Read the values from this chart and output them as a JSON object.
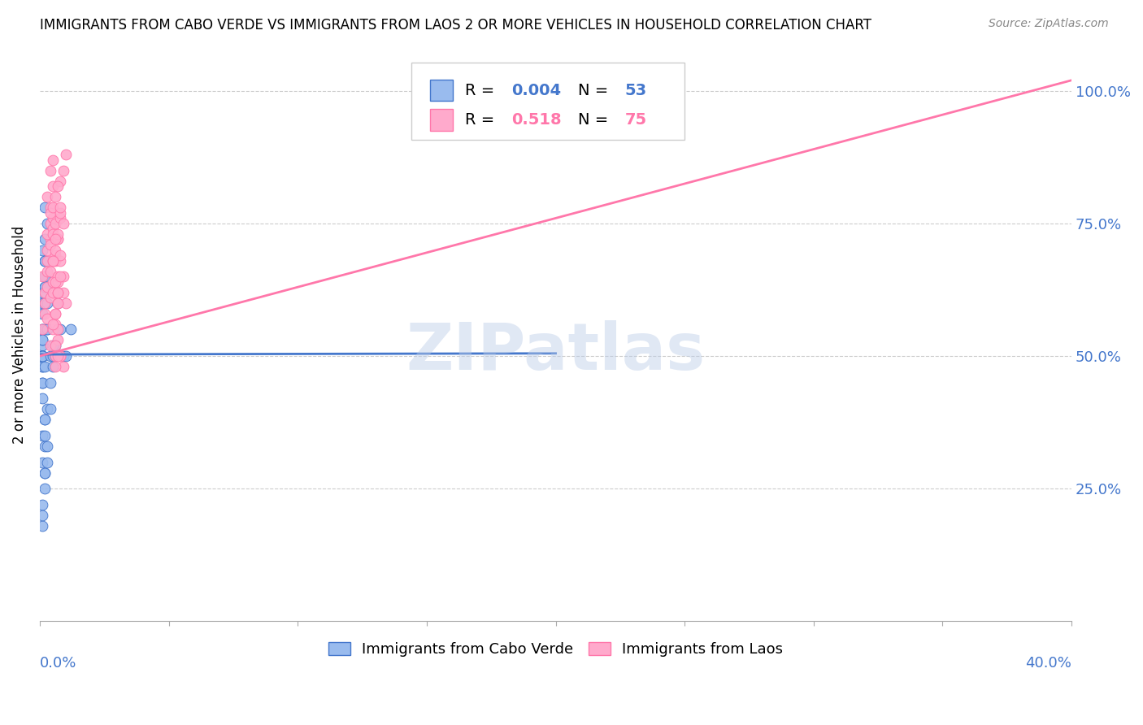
{
  "title": "IMMIGRANTS FROM CABO VERDE VS IMMIGRANTS FROM LAOS 2 OR MORE VEHICLES IN HOUSEHOLD CORRELATION CHART",
  "source": "Source: ZipAtlas.com",
  "ylabel": "2 or more Vehicles in Household",
  "ytick_labels": [
    "",
    "25.0%",
    "50.0%",
    "75.0%",
    "100.0%"
  ],
  "ytick_values": [
    0,
    0.25,
    0.5,
    0.75,
    1.0
  ],
  "xrange": [
    0,
    0.4
  ],
  "yrange": [
    0,
    1.08
  ],
  "legend1_label": "Immigrants from Cabo Verde",
  "legend2_label": "Immigrants from Laos",
  "r1": "0.004",
  "n1": "53",
  "r2": "0.518",
  "n2": "75",
  "color_blue": "#99BBEE",
  "color_blue_line": "#4477CC",
  "color_pink": "#FFAACC",
  "color_pink_line": "#FF77AA",
  "color_right_axis": "#4477CC",
  "watermark": "ZIPatlas",
  "cabo_verde_x": [
    0.001,
    0.001,
    0.002,
    0.001,
    0.001,
    0.002,
    0.001,
    0.002,
    0.001,
    0.001,
    0.002,
    0.001,
    0.001,
    0.002,
    0.001,
    0.003,
    0.002,
    0.001,
    0.001,
    0.002,
    0.001,
    0.001,
    0.002,
    0.002,
    0.001,
    0.001,
    0.003,
    0.002,
    0.001,
    0.001,
    0.003,
    0.002,
    0.001,
    0.001,
    0.002,
    0.001,
    0.003,
    0.002,
    0.001,
    0.002,
    0.004,
    0.003,
    0.005,
    0.006,
    0.004,
    0.005,
    0.007,
    0.006,
    0.008,
    0.005,
    0.009,
    0.01,
    0.012
  ],
  "cabo_verde_y": [
    0.5,
    0.52,
    0.63,
    0.6,
    0.48,
    0.65,
    0.7,
    0.68,
    0.55,
    0.58,
    0.72,
    0.5,
    0.62,
    0.6,
    0.53,
    0.75,
    0.78,
    0.5,
    0.55,
    0.65,
    0.5,
    0.53,
    0.63,
    0.68,
    0.48,
    0.5,
    0.6,
    0.55,
    0.45,
    0.5,
    0.55,
    0.48,
    0.45,
    0.42,
    0.38,
    0.35,
    0.4,
    0.33,
    0.3,
    0.28,
    0.5,
    0.55,
    0.5,
    0.52,
    0.45,
    0.48,
    0.6,
    0.5,
    0.55,
    0.52,
    0.5,
    0.5,
    0.55
  ],
  "cabo_verde_y_low": [
    0.22,
    0.18,
    0.25,
    0.28,
    0.2,
    0.3,
    0.35,
    0.38,
    0.33,
    0.4
  ],
  "cabo_verde_x_low": [
    0.001,
    0.001,
    0.002,
    0.002,
    0.001,
    0.003,
    0.002,
    0.002,
    0.003,
    0.004
  ],
  "laos_x": [
    0.001,
    0.002,
    0.001,
    0.003,
    0.002,
    0.003,
    0.004,
    0.003,
    0.002,
    0.004,
    0.003,
    0.004,
    0.005,
    0.004,
    0.003,
    0.005,
    0.004,
    0.003,
    0.005,
    0.004,
    0.003,
    0.004,
    0.005,
    0.006,
    0.005,
    0.004,
    0.005,
    0.006,
    0.005,
    0.004,
    0.006,
    0.005,
    0.006,
    0.007,
    0.006,
    0.005,
    0.006,
    0.007,
    0.006,
    0.007,
    0.007,
    0.008,
    0.007,
    0.008,
    0.006,
    0.007,
    0.008,
    0.007,
    0.008,
    0.009,
    0.008,
    0.009,
    0.01,
    0.009,
    0.008,
    0.009,
    0.01,
    0.009,
    0.008,
    0.007,
    0.007,
    0.006,
    0.007,
    0.008,
    0.006,
    0.005,
    0.006,
    0.005,
    0.007,
    0.006,
    0.005,
    0.007,
    0.006,
    0.008,
    0.007
  ],
  "laos_y": [
    0.55,
    0.6,
    0.65,
    0.68,
    0.62,
    0.7,
    0.72,
    0.66,
    0.58,
    0.75,
    0.8,
    0.78,
    0.82,
    0.85,
    0.63,
    0.87,
    0.71,
    0.73,
    0.76,
    0.52,
    0.57,
    0.61,
    0.64,
    0.69,
    0.74,
    0.77,
    0.55,
    0.58,
    0.62,
    0.66,
    0.7,
    0.73,
    0.68,
    0.72,
    0.75,
    0.78,
    0.5,
    0.53,
    0.56,
    0.6,
    0.64,
    0.68,
    0.72,
    0.76,
    0.8,
    0.65,
    0.69,
    0.73,
    0.77,
    0.85,
    0.83,
    0.62,
    0.88,
    0.65,
    0.5,
    0.48,
    0.6,
    0.75,
    0.78,
    0.82,
    0.55,
    0.58,
    0.62,
    0.5,
    0.72,
    0.68,
    0.52,
    0.56,
    0.6,
    0.64,
    0.68,
    0.5,
    0.48,
    0.65,
    0.62
  ],
  "cv_line_x": [
    0.0,
    0.2
  ],
  "cv_line_y": [
    0.503,
    0.505
  ],
  "laos_line_x": [
    0.0,
    0.4
  ],
  "laos_line_y": [
    0.5,
    1.02
  ]
}
